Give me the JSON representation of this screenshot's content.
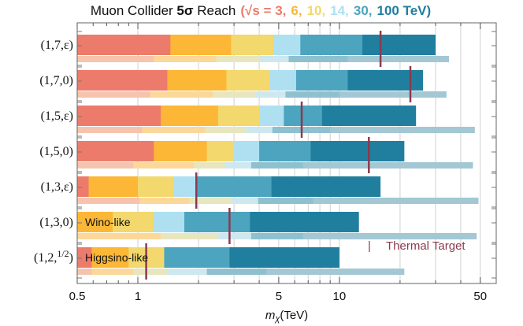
{
  "chart_data": {
    "type": "bar",
    "orientation": "horizontal",
    "title": {
      "prefix": "Muon Collider ",
      "bold": "5σ",
      "suffix": " Reach",
      "energy_open": "(√s = 3,",
      "energy_values": [
        "6,",
        "10,",
        "14,",
        "30,"
      ],
      "energy_close": "100 TeV)"
    },
    "xlabel": {
      "main": "m",
      "sub": "χ",
      "unit": "(TeV)"
    },
    "xscale": "log",
    "xlim": [
      0.5,
      60
    ],
    "xticks": [
      {
        "value": 0.5,
        "label": "0.5"
      },
      {
        "value": 1,
        "label": "1"
      },
      {
        "value": 5,
        "label": "5"
      },
      {
        "value": 10,
        "label": "10"
      },
      {
        "value": 50,
        "label": "50"
      }
    ],
    "energies_TeV": [
      3,
      6,
      10,
      14,
      30,
      100
    ],
    "series_colors": [
      "#ec7b6b",
      "#fbb735",
      "#f2d86d",
      "#aee0f2",
      "#4ca4be",
      "#207f9e"
    ],
    "light_colors": [
      "#f6c4ae",
      "#fbd89a",
      "#e8e6be",
      "#cde8ef",
      "#8fc0cf",
      "#a3c8d4"
    ],
    "rows": [
      {
        "label": "(1,7,ε)",
        "reach": [
          1.45,
          2.9,
          4.7,
          6.4,
          13,
          30
        ],
        "light": [
          1.2,
          2.45,
          4.0,
          5.6,
          11,
          35
        ],
        "thermal": 16
      },
      {
        "label": "(1,7,0)",
        "reach": [
          1.4,
          2.75,
          4.5,
          6.1,
          11,
          26
        ],
        "light": [
          1.15,
          2.35,
          3.8,
          5.4,
          10,
          34
        ],
        "thermal": 22.5
      },
      {
        "label": "(1,5,ε)",
        "reach": [
          1.3,
          2.5,
          4.0,
          5.3,
          8.2,
          24
        ],
        "light": [
          1.05,
          2.15,
          3.45,
          4.65,
          9,
          47
        ],
        "thermal": 6.5
      },
      {
        "label": "(1,5,0)",
        "reach": [
          1.2,
          2.2,
          3.0,
          4.0,
          7.2,
          21
        ],
        "light": [
          0.95,
          1.9,
          2.7,
          3.65,
          6.6,
          46
        ],
        "thermal": 14
      },
      {
        "label": "(1,3,ε)",
        "reach": [
          0.57,
          1.0,
          1.5,
          1.95,
          4.6,
          16
        ],
        "light": [
          1.02,
          1.8,
          2.9,
          3.95,
          7.4,
          49
        ],
        "thermal": 1.95
      },
      {
        "label": "(1,3,0)",
        "reach": [
          0.5,
          0.75,
          1.2,
          1.7,
          3.6,
          12.5
        ],
        "light": [
          0.5,
          1.3,
          2.5,
          3.65,
          6.6,
          48
        ],
        "thermal": 2.85,
        "annotation": "Wino-like"
      },
      {
        "label": "(1,2,1/2)",
        "reach": [
          0.59,
          0.9,
          1.35,
          1.35,
          2.85,
          10
        ],
        "light": [
          0.59,
          0.95,
          1.4,
          2.2,
          4.35,
          21
        ],
        "thermal": 1.1,
        "annotation": "Higgsino-like"
      }
    ],
    "legend": {
      "marker": "|",
      "label": "Thermal Target",
      "color": "#8b3a4f"
    }
  }
}
